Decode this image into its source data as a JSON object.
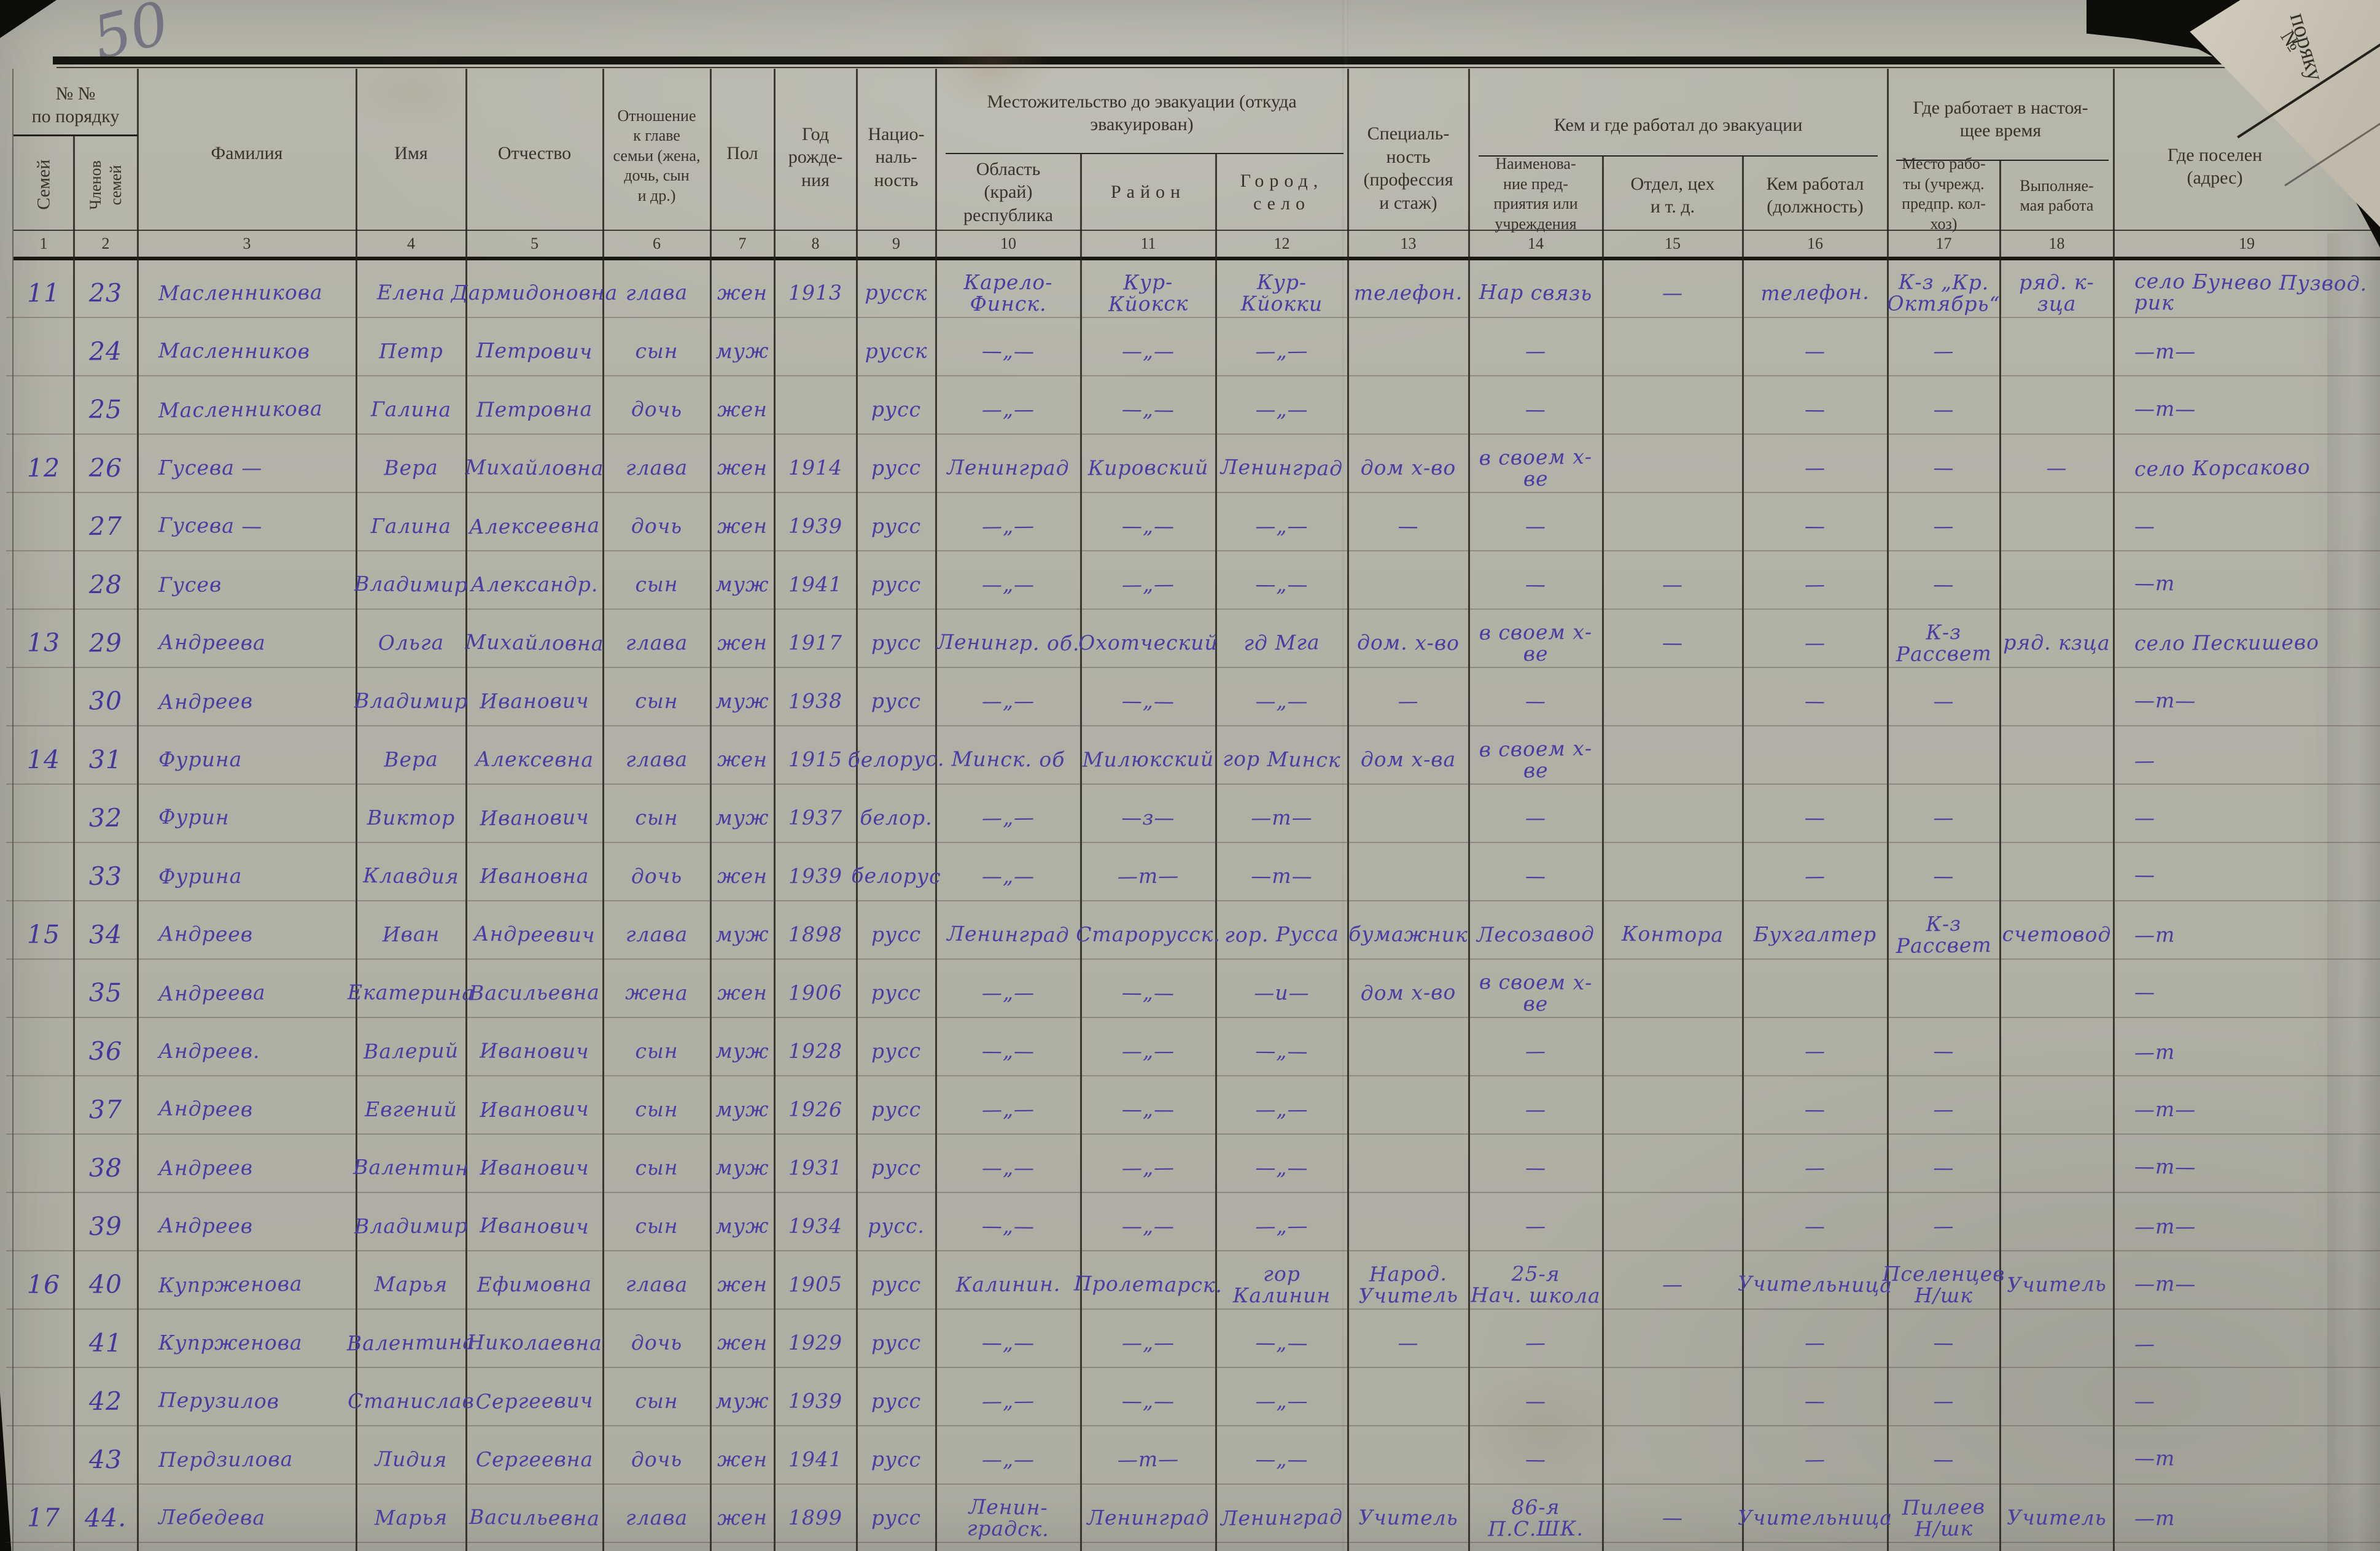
{
  "page": {
    "corner_number": "50"
  },
  "fold": {
    "no": "№",
    "word": "поряку"
  },
  "header": {
    "order_title": "№ №\nпо порядку",
    "families": "Семей",
    "members": "Членов\nсемей",
    "surname": "Фамилия",
    "name": "Имя",
    "patronymic": "Отчество",
    "relation": "Отношение\nк главе\nсемьи (жена,\nдочь, сын\nи др.)",
    "sex": "Пол",
    "birth": "Год\nрожде-\nния",
    "nationality": "Нацио-\nналь-\nность",
    "residence_group": "Местожительство до эвакуации (откуда\nэвакуирован)",
    "oblast": "Область\n(край)\nреспублика",
    "raion": "Район",
    "city": "Город,\nсело",
    "specialty": "Специаль-\nность\n(профессия\nи стаж)",
    "work_group": "Кем и где работал до эвакуации",
    "enterprise": "Наименова-\nние пред-\nприятия или\nучреждения",
    "dept": "Отдел, цех\nи т. д.",
    "position": "Кем работал\n(должность)",
    "current_group": "Где работает в настоя-\nщее время",
    "work_place": "Место рабо-\nты (учрежд.\nпредпр. кол-\nхоз)",
    "work_done": "Выполняе-\nмая работа",
    "settled": "Где поселен\n(адрес)",
    "col_numbers": [
      "1",
      "2",
      "3",
      "4",
      "5",
      "6",
      "7",
      "8",
      "9",
      "10",
      "11",
      "12",
      "13",
      "14",
      "15",
      "16",
      "17",
      "18",
      "19"
    ]
  },
  "rows": [
    {
      "fam": "11",
      "num": "23",
      "surname": "Масленникова",
      "name": "Елена",
      "patronymic": "Дармидоновна",
      "relation": "глава",
      "sex": "жен",
      "birth": "1913",
      "nationality": "русск",
      "oblast": "Карело-Финск.",
      "raion": "Кур-\nКйокск",
      "city": "Кур-\nКйокки",
      "specialty": "телефон.",
      "enterprise": "Нар связь",
      "dept": "—",
      "position": "телефон.",
      "work_place": "К-з „Кр.\nОктябрь“",
      "work_done": "ряд. к-зца",
      "settled": "село Бунево Пузвод. рик"
    },
    {
      "fam": "",
      "num": "24",
      "surname": "Масленников",
      "name": "Петр",
      "patronymic": "Петрович",
      "relation": "сын",
      "sex": "муж",
      "birth": "",
      "nationality": "русск",
      "oblast": "—„—",
      "raion": "—„—",
      "city": "—„—",
      "specialty": "",
      "enterprise": "—",
      "dept": "",
      "position": "—",
      "work_place": "—",
      "work_done": "",
      "settled": "—т—"
    },
    {
      "fam": "",
      "num": "25",
      "surname": "Масленникова",
      "name": "Галина",
      "patronymic": "Петровна",
      "relation": "дочь",
      "sex": "жен",
      "birth": "",
      "nationality": "русс",
      "oblast": "—„—",
      "raion": "—„—",
      "city": "—„—",
      "specialty": "",
      "enterprise": "—",
      "dept": "",
      "position": "—",
      "work_place": "—",
      "work_done": "",
      "settled": "—т—"
    },
    {
      "fam": "12",
      "num": "26",
      "surname": "Гусева —",
      "name": "Вера",
      "patronymic": "Михайловна",
      "relation": "глава",
      "sex": "жен",
      "birth": "1914",
      "nationality": "русс",
      "oblast": "Ленинград",
      "raion": "Кировский",
      "city": "Ленинград",
      "specialty": "дом х-во",
      "enterprise": "в своем х-ве",
      "dept": "",
      "position": "—",
      "work_place": "—",
      "work_done": "—",
      "settled": "село Корсаково"
    },
    {
      "fam": "",
      "num": "27",
      "surname": "Гусева —",
      "name": "Галина",
      "patronymic": "Алексеевна",
      "relation": "дочь",
      "sex": "жен",
      "birth": "1939",
      "nationality": "русс",
      "oblast": "—„—",
      "raion": "—„—",
      "city": "—„—",
      "specialty": "—",
      "enterprise": "—",
      "dept": "",
      "position": "—",
      "work_place": "—",
      "work_done": "",
      "settled": "—"
    },
    {
      "fam": "",
      "num": "28",
      "surname": "Гусев",
      "name": "Владимир",
      "patronymic": "Александр.",
      "relation": "сын",
      "sex": "муж",
      "birth": "1941",
      "nationality": "русс",
      "oblast": "—„—",
      "raion": "—„—",
      "city": "—„—",
      "specialty": "",
      "enterprise": "—",
      "dept": "—",
      "position": "—",
      "work_place": "—",
      "work_done": "",
      "settled": "—т"
    },
    {
      "fam": "13",
      "num": "29",
      "surname": "Андреева",
      "name": "Ольга",
      "patronymic": "Михайловна",
      "relation": "глава",
      "sex": "жен",
      "birth": "1917",
      "nationality": "русс",
      "oblast": "Ленингр. об.",
      "raion": "Охотческий",
      "city": "гд Мга",
      "specialty": "дом. х-во",
      "enterprise": "в своем х-ве",
      "dept": "—",
      "position": "—",
      "work_place": "К-з Рассвет",
      "work_done": "ряд. кзца",
      "settled": "село Пескишево"
    },
    {
      "fam": "",
      "num": "30",
      "surname": "Андреев",
      "name": "Владимир",
      "patronymic": "Иванович",
      "relation": "сын",
      "sex": "муж",
      "birth": "1938",
      "nationality": "русс",
      "oblast": "—„—",
      "raion": "—„—",
      "city": "—„—",
      "specialty": "—",
      "enterprise": "—",
      "dept": "",
      "position": "—",
      "work_place": "—",
      "work_done": "",
      "settled": "—т—"
    },
    {
      "fam": "14",
      "num": "31",
      "surname": "Фурина",
      "name": "Вера",
      "patronymic": "Алексевна",
      "relation": "глава",
      "sex": "жен",
      "birth": "1915",
      "nationality": "белорус.",
      "oblast": "Минск. об",
      "raion": "Милюкский",
      "city": "гор Минск",
      "specialty": "дом х-ва",
      "enterprise": "в своем х-ве",
      "dept": "",
      "position": "",
      "work_place": "",
      "work_done": "",
      "settled": "—"
    },
    {
      "fam": "",
      "num": "32",
      "surname": "Фурин",
      "name": "Виктор",
      "patronymic": "Иванович",
      "relation": "сын",
      "sex": "муж",
      "birth": "1937",
      "nationality": "белор.",
      "oblast": "—„—",
      "raion": "—з—",
      "city": "—т—",
      "specialty": "",
      "enterprise": "—",
      "dept": "",
      "position": "—",
      "work_place": "—",
      "work_done": "",
      "settled": "—"
    },
    {
      "fam": "",
      "num": "33",
      "surname": "Фурина",
      "name": "Клавдия",
      "patronymic": "Ивановна",
      "relation": "дочь",
      "sex": "жен",
      "birth": "1939",
      "nationality": "белорус",
      "oblast": "—„—",
      "raion": "—т—",
      "city": "—т—",
      "specialty": "",
      "enterprise": "—",
      "dept": "",
      "position": "—",
      "work_place": "—",
      "work_done": "",
      "settled": "—"
    },
    {
      "fam": "15",
      "num": "34",
      "surname": "Андреев",
      "name": "Иван",
      "patronymic": "Андреевич",
      "relation": "глава",
      "sex": "муж",
      "birth": "1898",
      "nationality": "русс",
      "oblast": "Ленинград",
      "raion": "Старорусск.",
      "city": "гор. Русса",
      "specialty": "бумажник",
      "enterprise": "Лесозавод",
      "dept": "Контора",
      "position": "Бухгалтер",
      "work_place": "К-з Рассвет",
      "work_done": "счетовод",
      "settled": "—т"
    },
    {
      "fam": "",
      "num": "35",
      "surname": "Андреева",
      "name": "Екатерина",
      "patronymic": "Васильевна",
      "relation": "жена",
      "sex": "жен",
      "birth": "1906",
      "nationality": "русс",
      "oblast": "—„—",
      "raion": "—„—",
      "city": "—и—",
      "specialty": "дом х-во",
      "enterprise": "в своем х-ве",
      "dept": "",
      "position": "",
      "work_place": "",
      "work_done": "",
      "settled": "—"
    },
    {
      "fam": "",
      "num": "36",
      "surname": "Андреев.",
      "name": "Валерий",
      "patronymic": "Иванович",
      "relation": "сын",
      "sex": "муж",
      "birth": "1928",
      "nationality": "русс",
      "oblast": "—„—",
      "raion": "—„—",
      "city": "—„—",
      "specialty": "",
      "enterprise": "—",
      "dept": "",
      "position": "—",
      "work_place": "—",
      "work_done": "",
      "settled": "—т"
    },
    {
      "fam": "",
      "num": "37",
      "surname": "Андреев",
      "name": "Евгений",
      "patronymic": "Иванович",
      "relation": "сын",
      "sex": "муж",
      "birth": "1926",
      "nationality": "русс",
      "oblast": "—„—",
      "raion": "—„—",
      "city": "—„—",
      "specialty": "",
      "enterprise": "—",
      "dept": "",
      "position": "—",
      "work_place": "—",
      "work_done": "",
      "settled": "—т—"
    },
    {
      "fam": "",
      "num": "38",
      "surname": "Андреев",
      "name": "Валентин",
      "patronymic": "Иванович",
      "relation": "сын",
      "sex": "муж",
      "birth": "1931",
      "nationality": "русс",
      "oblast": "—„—",
      "raion": "—„—",
      "city": "—„—",
      "specialty": "",
      "enterprise": "—",
      "dept": "",
      "position": "—",
      "work_place": "—",
      "work_done": "",
      "settled": "—т—"
    },
    {
      "fam": "",
      "num": "39",
      "surname": "Андреев",
      "name": "Владимир",
      "patronymic": "Иванович",
      "relation": "сын",
      "sex": "муж",
      "birth": "1934",
      "nationality": "русс.",
      "oblast": "—„—",
      "raion": "—„—",
      "city": "—„—",
      "specialty": "",
      "enterprise": "—",
      "dept": "",
      "position": "—",
      "work_place": "—",
      "work_done": "",
      "settled": "—т—"
    },
    {
      "fam": "16",
      "num": "40",
      "surname": "Купрженова",
      "name": "Марья",
      "patronymic": "Ефимовна",
      "relation": "глава",
      "sex": "жен",
      "birth": "1905",
      "nationality": "русс",
      "oblast": "Калинин.",
      "raion": "Пролетарск.",
      "city": "гор Калинин",
      "specialty": "Народ.\nУчитель",
      "enterprise": "25-я\nНач. школа",
      "dept": "—",
      "position": "Учительница",
      "work_place": "Пселенцев\nН/шк",
      "work_done": "Учитель",
      "settled": "—т—"
    },
    {
      "fam": "",
      "num": "41",
      "surname": "Купрженова",
      "name": "Валентина",
      "patronymic": "Николаевна",
      "relation": "дочь",
      "sex": "жен",
      "birth": "1929",
      "nationality": "русс",
      "oblast": "—„—",
      "raion": "—„—",
      "city": "—„—",
      "specialty": "—",
      "enterprise": "—",
      "dept": "",
      "position": "—",
      "work_place": "—",
      "work_done": "",
      "settled": "—"
    },
    {
      "fam": "",
      "num": "42",
      "surname": "Перузилов",
      "name": "Станислав",
      "patronymic": "Сергеевич",
      "relation": "сын",
      "sex": "муж",
      "birth": "1939",
      "nationality": "русс",
      "oblast": "—„—",
      "raion": "—„—",
      "city": "—„—",
      "specialty": "",
      "enterprise": "—",
      "dept": "",
      "position": "—",
      "work_place": "—",
      "work_done": "",
      "settled": "—"
    },
    {
      "fam": "",
      "num": "43",
      "surname": "Пердзилова",
      "name": "Лидия",
      "patronymic": "Сергеевна",
      "relation": "дочь",
      "sex": "жен",
      "birth": "1941",
      "nationality": "русс",
      "oblast": "—„—",
      "raion": "—т—",
      "city": "—„—",
      "specialty": "",
      "enterprise": "—",
      "dept": "",
      "position": "—",
      "work_place": "—",
      "work_done": "",
      "settled": "—т"
    },
    {
      "fam": "17",
      "num": "44.",
      "surname": "Лебедева",
      "name": "Марья",
      "patronymic": "Васильевна",
      "relation": "глава",
      "sex": "жен",
      "birth": "1899",
      "nationality": "русс",
      "oblast": "Ленин-\nградск.",
      "raion": "Ленинград",
      "city": "Ленинград",
      "specialty": "Учитель",
      "enterprise": "86-я\nП.С.ШК.",
      "dept": "—",
      "position": "Учительница",
      "work_place": "Пилеев\nН/шк",
      "work_done": "Учитель",
      "settled": "—т"
    }
  ]
}
